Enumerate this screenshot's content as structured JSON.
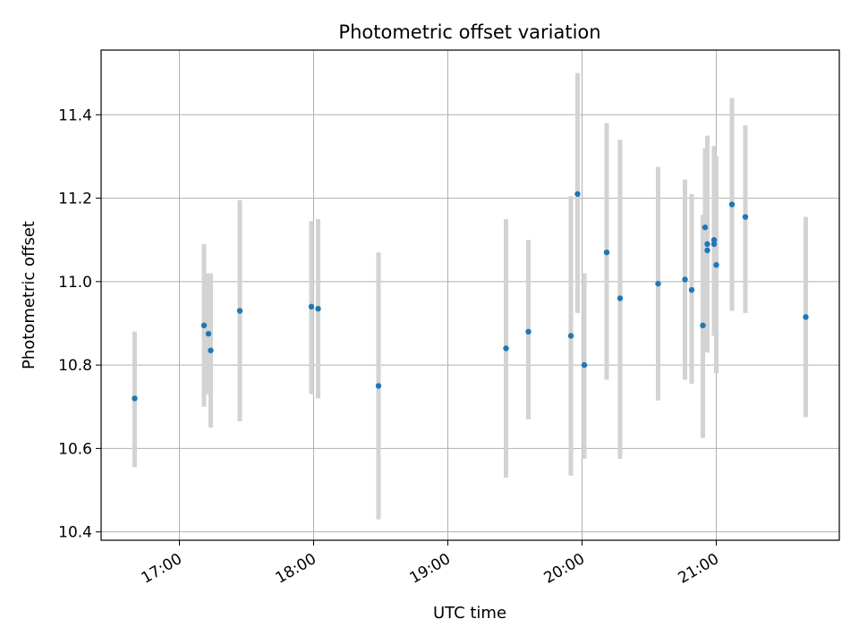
{
  "chart_data": {
    "type": "scatter",
    "title": "Photometric offset variation",
    "xlabel": "UTC time",
    "ylabel": "Photometric offset",
    "x_ticks": [
      "17:00",
      "18:00",
      "19:00",
      "20:00",
      "21:00"
    ],
    "y_ticks": [
      "10.4",
      "10.6",
      "10.8",
      "11.0",
      "11.2",
      "11.4"
    ],
    "xlim": [
      "16:25",
      "21:55"
    ],
    "ylim": [
      10.38,
      11.555
    ],
    "grid": true,
    "colors": {
      "point": "#1f77b4",
      "errorbar": "#d3d3d3",
      "grid": "#b0b0b0"
    },
    "points": [
      {
        "x": "16:40",
        "y": 10.72,
        "err_low": 10.555,
        "err_high": 10.88
      },
      {
        "x": "17:11",
        "y": 10.895,
        "err_low": 10.7,
        "err_high": 11.09
      },
      {
        "x": "17:13",
        "y": 10.875,
        "err_low": 10.73,
        "err_high": 11.02
      },
      {
        "x": "17:14",
        "y": 10.835,
        "err_low": 10.65,
        "err_high": 11.02
      },
      {
        "x": "17:27",
        "y": 10.93,
        "err_low": 10.665,
        "err_high": 11.195
      },
      {
        "x": "17:59",
        "y": 10.94,
        "err_low": 10.73,
        "err_high": 11.145
      },
      {
        "x": "18:02",
        "y": 10.935,
        "err_low": 10.72,
        "err_high": 11.15
      },
      {
        "x": "18:29",
        "y": 10.75,
        "err_low": 10.43,
        "err_high": 11.07
      },
      {
        "x": "19:26",
        "y": 10.84,
        "err_low": 10.53,
        "err_high": 11.15
      },
      {
        "x": "19:36",
        "y": 10.88,
        "err_low": 10.67,
        "err_high": 11.1
      },
      {
        "x": "19:55",
        "y": 10.87,
        "err_low": 10.535,
        "err_high": 11.205
      },
      {
        "x": "19:58",
        "y": 11.21,
        "err_low": 10.925,
        "err_high": 11.5
      },
      {
        "x": "20:01",
        "y": 10.8,
        "err_low": 10.575,
        "err_high": 11.02
      },
      {
        "x": "20:11",
        "y": 11.07,
        "err_low": 10.765,
        "err_high": 11.38
      },
      {
        "x": "20:17",
        "y": 10.96,
        "err_low": 10.575,
        "err_high": 11.34
      },
      {
        "x": "20:34",
        "y": 10.995,
        "err_low": 10.715,
        "err_high": 11.275
      },
      {
        "x": "20:46",
        "y": 11.005,
        "err_low": 10.765,
        "err_high": 11.245
      },
      {
        "x": "20:49",
        "y": 10.98,
        "err_low": 10.755,
        "err_high": 11.21
      },
      {
        "x": "20:54",
        "y": 10.895,
        "err_low": 10.625,
        "err_high": 11.16
      },
      {
        "x": "20:55",
        "y": 11.13,
        "err_low": 10.94,
        "err_high": 11.32
      },
      {
        "x": "20:56",
        "y": 11.075,
        "err_low": 10.83,
        "err_high": 11.35
      },
      {
        "x": "20:56",
        "y": 11.09,
        "err_low": 10.86,
        "err_high": 11.31
      },
      {
        "x": "20:59",
        "y": 11.1,
        "err_low": 10.88,
        "err_high": 11.325
      },
      {
        "x": "20:59",
        "y": 11.09,
        "err_low": 10.87,
        "err_high": 11.31
      },
      {
        "x": "21:00",
        "y": 11.04,
        "err_low": 10.78,
        "err_high": 11.3
      },
      {
        "x": "21:07",
        "y": 11.185,
        "err_low": 10.93,
        "err_high": 11.44
      },
      {
        "x": "21:13",
        "y": 11.155,
        "err_low": 10.925,
        "err_high": 11.375
      },
      {
        "x": "21:40",
        "y": 10.915,
        "err_low": 10.675,
        "err_high": 11.155
      }
    ]
  }
}
